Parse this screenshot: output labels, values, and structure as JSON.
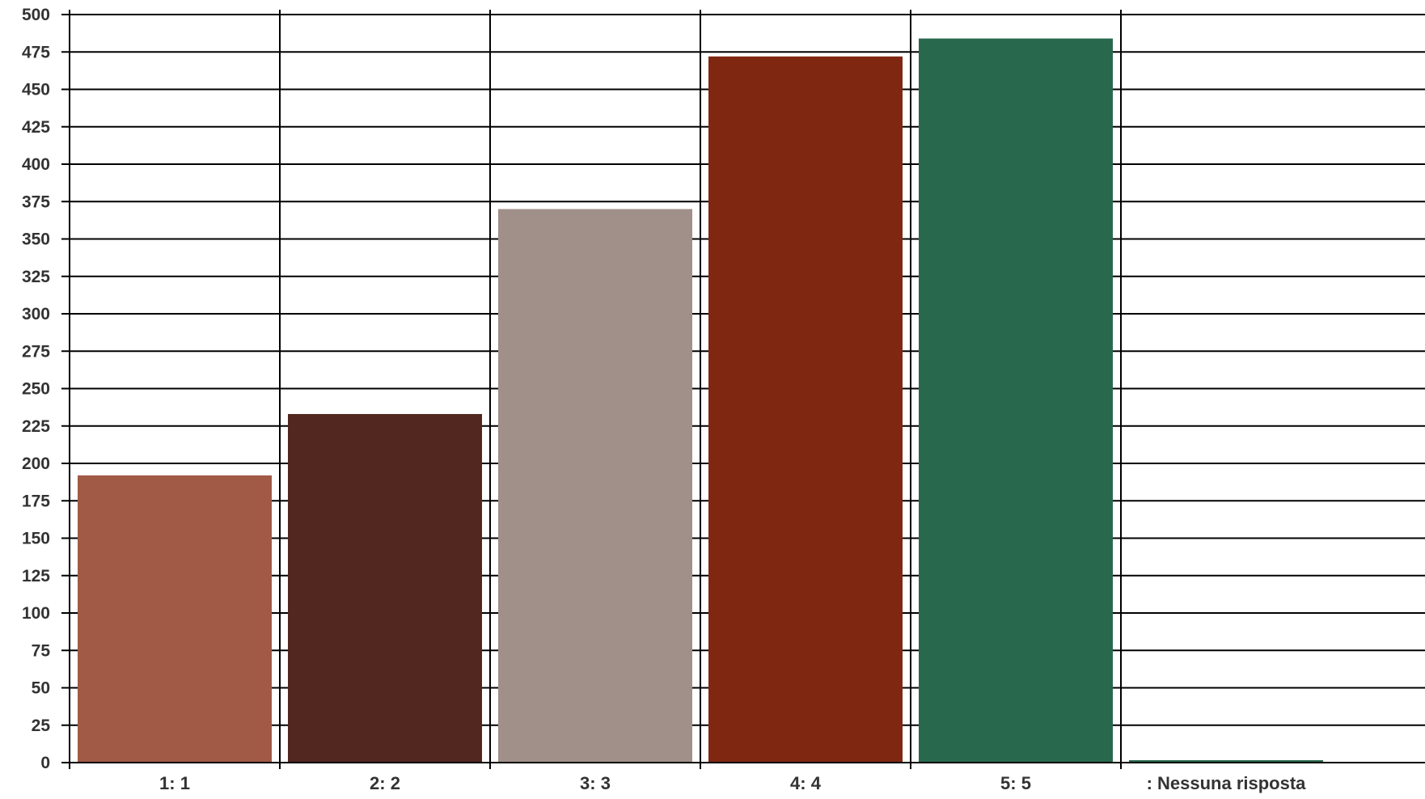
{
  "chart_data": {
    "type": "bar",
    "title": "",
    "xlabel": "",
    "ylabel": "",
    "categories": [
      "1: 1",
      "2: 2",
      "3: 3",
      "4: 4",
      "5: 5",
      ": Nessuna risposta"
    ],
    "values": [
      192,
      233,
      370,
      472,
      484,
      0
    ],
    "colors": [
      "#a05a45",
      "#51271f",
      "#a09089",
      "#802712",
      "#28694e",
      "#28694e"
    ],
    "ylim": [
      0,
      500
    ],
    "yticks": [
      0,
      25,
      50,
      75,
      100,
      125,
      150,
      175,
      200,
      225,
      250,
      275,
      300,
      325,
      350,
      375,
      400,
      425,
      450,
      475,
      500
    ],
    "grid": true,
    "legend": "none"
  }
}
